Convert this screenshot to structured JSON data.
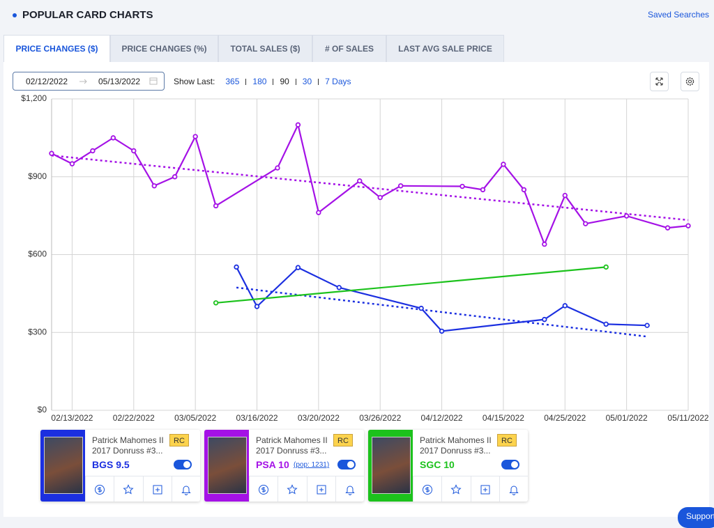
{
  "header": {
    "title": "POPULAR CARD CHARTS",
    "link": "Saved Searches"
  },
  "tabs": [
    "PRICE CHANGES ($)",
    "PRICE CHANGES (%)",
    "TOTAL SALES ($)",
    "# OF SALES",
    "LAST AVG SALE PRICE"
  ],
  "date_range": {
    "start": "02/12/2022",
    "end": "05/13/2022"
  },
  "show_last": {
    "label": "Show Last:",
    "options": [
      "365",
      "180",
      "90",
      "30",
      "7 Days"
    ],
    "active": 2
  },
  "chart_data": {
    "type": "line",
    "categories": [
      null,
      "02/13/2022",
      null,
      null,
      "02/22/2022",
      null,
      null,
      "03/05/2022",
      null,
      null,
      "03/16/2022",
      null,
      null,
      "03/20/2022",
      null,
      null,
      "03/26/2022",
      null,
      null,
      "04/12/2022",
      null,
      null,
      "04/15/2022",
      null,
      null,
      "04/25/2022",
      null,
      null,
      "05/01/2022",
      null,
      null,
      "05/11/2022"
    ],
    "ylim": [
      0,
      1200
    ],
    "yticks": [
      {
        "value": 0,
        "label": "$0"
      },
      {
        "value": 300,
        "label": "$300"
      },
      {
        "value": 600,
        "label": "$600"
      },
      {
        "value": 900,
        "label": "$900"
      },
      {
        "value": 1200,
        "label": "$1,200"
      }
    ],
    "grid": true,
    "series": [
      {
        "name": "BGS 9.5",
        "color": "#1b2fe0",
        "values": [
          null,
          null,
          null,
          null,
          null,
          null,
          null,
          null,
          null,
          552,
          400,
          null,
          550,
          null,
          473,
          null,
          null,
          null,
          393,
          305,
          null,
          null,
          null,
          null,
          350,
          403,
          null,
          332,
          null,
          327,
          null,
          null
        ],
        "trend_values": [
          null,
          null,
          null,
          null,
          null,
          null,
          null,
          null,
          null,
          473,
          null,
          null,
          null,
          null,
          null,
          null,
          null,
          null,
          null,
          null,
          null,
          null,
          null,
          null,
          null,
          null,
          null,
          null,
          null,
          284,
          null,
          null
        ]
      },
      {
        "name": "PSA 10",
        "color": "#a411e6",
        "values": [
          990,
          950,
          1000,
          1050,
          1000,
          865,
          900,
          1055,
          788,
          null,
          null,
          934,
          1100,
          762,
          null,
          884,
          820,
          865,
          null,
          null,
          863,
          850,
          948,
          850,
          640,
          828,
          719,
          null,
          749,
          null,
          703,
          711
        ],
        "trend_values": [
          982,
          null,
          null,
          null,
          null,
          null,
          null,
          null,
          null,
          null,
          null,
          null,
          null,
          null,
          null,
          null,
          null,
          null,
          null,
          null,
          null,
          null,
          null,
          null,
          null,
          null,
          null,
          null,
          null,
          null,
          null,
          733
        ]
      },
      {
        "name": "SGC 10",
        "color": "#1cc21c",
        "values": [
          null,
          null,
          null,
          null,
          null,
          null,
          null,
          null,
          414,
          null,
          null,
          null,
          null,
          null,
          null,
          null,
          null,
          null,
          null,
          null,
          null,
          null,
          null,
          null,
          null,
          null,
          null,
          552,
          null,
          null,
          null,
          null
        ]
      }
    ]
  },
  "cards": [
    {
      "player": "Patrick Mahomes II",
      "set": "2017 Donruss #3...",
      "badge": "RC"
    },
    {
      "player": "Patrick Mahomes II",
      "set": "2017 Donruss #3...",
      "badge": "RC",
      "pop": "(pop: 1231)"
    },
    {
      "player": "Patrick Mahomes II",
      "set": "2017 Donruss #3...",
      "badge": "RC"
    }
  ],
  "support": "Support"
}
